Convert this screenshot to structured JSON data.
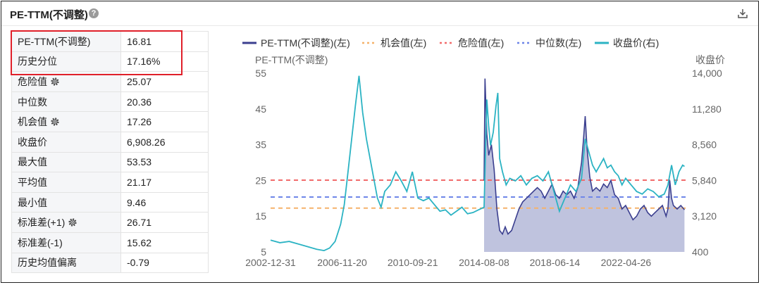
{
  "header": {
    "title": "PE-TTM(不调整)",
    "help_icon": "question-circle-icon",
    "download_icon": "download-icon"
  },
  "stats": [
    {
      "label": "PE-TTM(不调整)",
      "value": "16.81",
      "gear": false
    },
    {
      "label": "历史分位",
      "value": "17.16%",
      "gear": false
    },
    {
      "label": "危险值",
      "value": "25.07",
      "gear": true
    },
    {
      "label": "中位数",
      "value": "20.36",
      "gear": false
    },
    {
      "label": "机会值",
      "value": "17.26",
      "gear": true
    },
    {
      "label": "收盘价",
      "value": "6,908.26",
      "gear": false
    },
    {
      "label": "最大值",
      "value": "53.53",
      "gear": false
    },
    {
      "label": "平均值",
      "value": "21.17",
      "gear": false
    },
    {
      "label": "最小值",
      "value": "9.46",
      "gear": false
    },
    {
      "label": "标准差(+1)",
      "value": "26.71",
      "gear": true
    },
    {
      "label": "标准差(-1)",
      "value": "15.62",
      "gear": false
    },
    {
      "label": "历史均值偏离",
      "value": "-0.79",
      "gear": false
    }
  ],
  "colors": {
    "pe": "#3b3f8f",
    "price": "#2bb3c3",
    "opportunity": "#f5b26b",
    "danger": "#f26b6b",
    "median": "#6f86e8",
    "highlight": "#e0202a"
  },
  "chart_data": {
    "type": "line",
    "left_axis_label": "PE-TTM(不调整)",
    "right_axis_label": "收盘价",
    "x_ticks": [
      "2002-12-31",
      "2006-11-20",
      "2010-09-21",
      "2014-08-08",
      "2018-06-14",
      "2022-04-26"
    ],
    "x_range": [
      2002.99,
      2025.6
    ],
    "y_left_ticks": [
      "55",
      "45",
      "35",
      "25",
      "15",
      "5"
    ],
    "y_left_range": [
      5,
      55
    ],
    "y_right_ticks": [
      "14,000",
      "11,280",
      "8,560",
      "5,840",
      "3,120",
      "400"
    ],
    "y_right_range": [
      400,
      14000
    ],
    "legend": [
      "PE-TTM(不调整)(左)",
      "机会值(左)",
      "危险值(左)",
      "中位数(左)",
      "收盘价(右)"
    ],
    "reference_lines": {
      "danger": 25.07,
      "median": 20.36,
      "opportunity": 17.26,
      "start": 2014.6
    },
    "pe_series": {
      "name": "PE-TTM(不调整)(左)",
      "x": [
        2014.6,
        2014.65,
        2014.75,
        2014.85,
        2015.0,
        2015.15,
        2015.3,
        2015.45,
        2015.6,
        2015.75,
        2015.9,
        2016.1,
        2016.3,
        2016.5,
        2016.7,
        2016.9,
        2017.1,
        2017.3,
        2017.5,
        2017.7,
        2017.9,
        2018.1,
        2018.3,
        2018.5,
        2018.7,
        2018.9,
        2019.1,
        2019.3,
        2019.5,
        2019.7,
        2019.9,
        2020.0,
        2020.1,
        2020.2,
        2020.35,
        2020.5,
        2020.7,
        2020.9,
        2021.1,
        2021.3,
        2021.5,
        2021.7,
        2021.9,
        2022.1,
        2022.3,
        2022.5,
        2022.7,
        2022.9,
        2023.1,
        2023.3,
        2023.5,
        2023.7,
        2023.9,
        2024.1,
        2024.3,
        2024.5,
        2024.6,
        2024.7,
        2024.8,
        2024.9,
        2025.1,
        2025.3,
        2025.5
      ],
      "y": [
        25,
        53.5,
        38,
        32,
        35,
        28,
        17,
        11,
        10,
        12,
        10,
        11,
        14,
        17,
        19,
        20,
        21,
        22,
        23,
        22,
        20,
        22,
        24,
        21,
        20,
        22,
        21,
        22,
        20,
        23,
        30,
        36,
        43,
        34,
        26,
        22,
        23,
        22,
        24,
        23,
        25,
        21,
        20,
        17,
        18,
        16,
        14,
        15,
        17,
        18,
        16,
        15,
        16,
        17,
        18,
        15,
        17,
        25,
        20,
        18,
        17,
        18,
        16.8
      ]
    },
    "price_series": {
      "name": "收盘价(右)",
      "x": [
        2002.99,
        2003.5,
        2004.0,
        2004.5,
        2005.0,
        2005.5,
        2005.9,
        2006.2,
        2006.5,
        2006.8,
        2007.0,
        2007.2,
        2007.4,
        2007.6,
        2007.8,
        2008.0,
        2008.2,
        2008.4,
        2008.6,
        2008.8,
        2009.0,
        2009.2,
        2009.5,
        2009.8,
        2010.1,
        2010.4,
        2010.7,
        2011.0,
        2011.3,
        2011.6,
        2011.9,
        2012.2,
        2012.5,
        2012.8,
        2013.1,
        2013.4,
        2013.7,
        2014.0,
        2014.3,
        2014.6,
        2014.75,
        2014.85,
        2014.95,
        2015.1,
        2015.25,
        2015.35,
        2015.45,
        2015.6,
        2015.8,
        2016.0,
        2016.3,
        2016.6,
        2016.9,
        2017.2,
        2017.5,
        2017.8,
        2018.1,
        2018.4,
        2018.7,
        2019.0,
        2019.3,
        2019.6,
        2019.9,
        2020.0,
        2020.1,
        2020.3,
        2020.5,
        2020.7,
        2020.9,
        2021.1,
        2021.3,
        2021.5,
        2021.7,
        2021.9,
        2022.1,
        2022.3,
        2022.6,
        2022.9,
        2023.2,
        2023.5,
        2023.8,
        2024.1,
        2024.4,
        2024.6,
        2024.8,
        2025.0,
        2025.2,
        2025.4,
        2025.5
      ],
      "y": [
        1300,
        1100,
        1200,
        1000,
        800,
        600,
        500,
        700,
        1200,
        2500,
        4000,
        6500,
        9000,
        11500,
        13800,
        11000,
        9000,
        7500,
        6000,
        4500,
        3800,
        5000,
        5500,
        6500,
        5800,
        5000,
        6500,
        4500,
        4300,
        4500,
        4000,
        3500,
        3600,
        3200,
        3500,
        3800,
        3300,
        3400,
        3600,
        3800,
        12000,
        10000,
        8500,
        9500,
        11500,
        12500,
        7500,
        6500,
        5500,
        6000,
        5800,
        6200,
        5500,
        6000,
        6200,
        5800,
        6500,
        5000,
        3500,
        4500,
        5500,
        5000,
        6000,
        7500,
        9000,
        8000,
        7000,
        6500,
        7000,
        7500,
        6800,
        7000,
        6500,
        6200,
        5500,
        6000,
        5500,
        5000,
        4800,
        5200,
        5000,
        4600,
        4800,
        5500,
        7000,
        5500,
        6500,
        7000,
        6908
      ]
    }
  }
}
